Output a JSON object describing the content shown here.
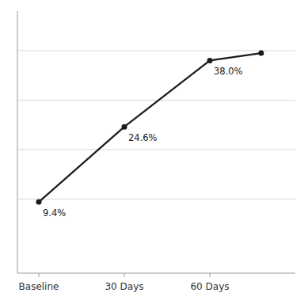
{
  "chart_data": {
    "type": "line",
    "x": [
      0,
      1,
      2,
      2.6
    ],
    "values": [
      9.4,
      24.6,
      38.0,
      39.5
    ],
    "value_labels": [
      "9.4%",
      "24.6%",
      "38.0%",
      null
    ],
    "data_labels": true,
    "color": "#1a1a1a",
    "marker": "circle",
    "xlim": [
      -0.25,
      3.0
    ],
    "xticks": [
      {
        "value": 0,
        "label": "Baseline"
      },
      {
        "value": 1,
        "label": "30 Days"
      },
      {
        "value": 2,
        "label": "60 Days"
      }
    ],
    "ylim": [
      -5,
      48
    ],
    "yticks": [
      10,
      20,
      30,
      40
    ],
    "grid": true,
    "tick_labels": "x"
  }
}
